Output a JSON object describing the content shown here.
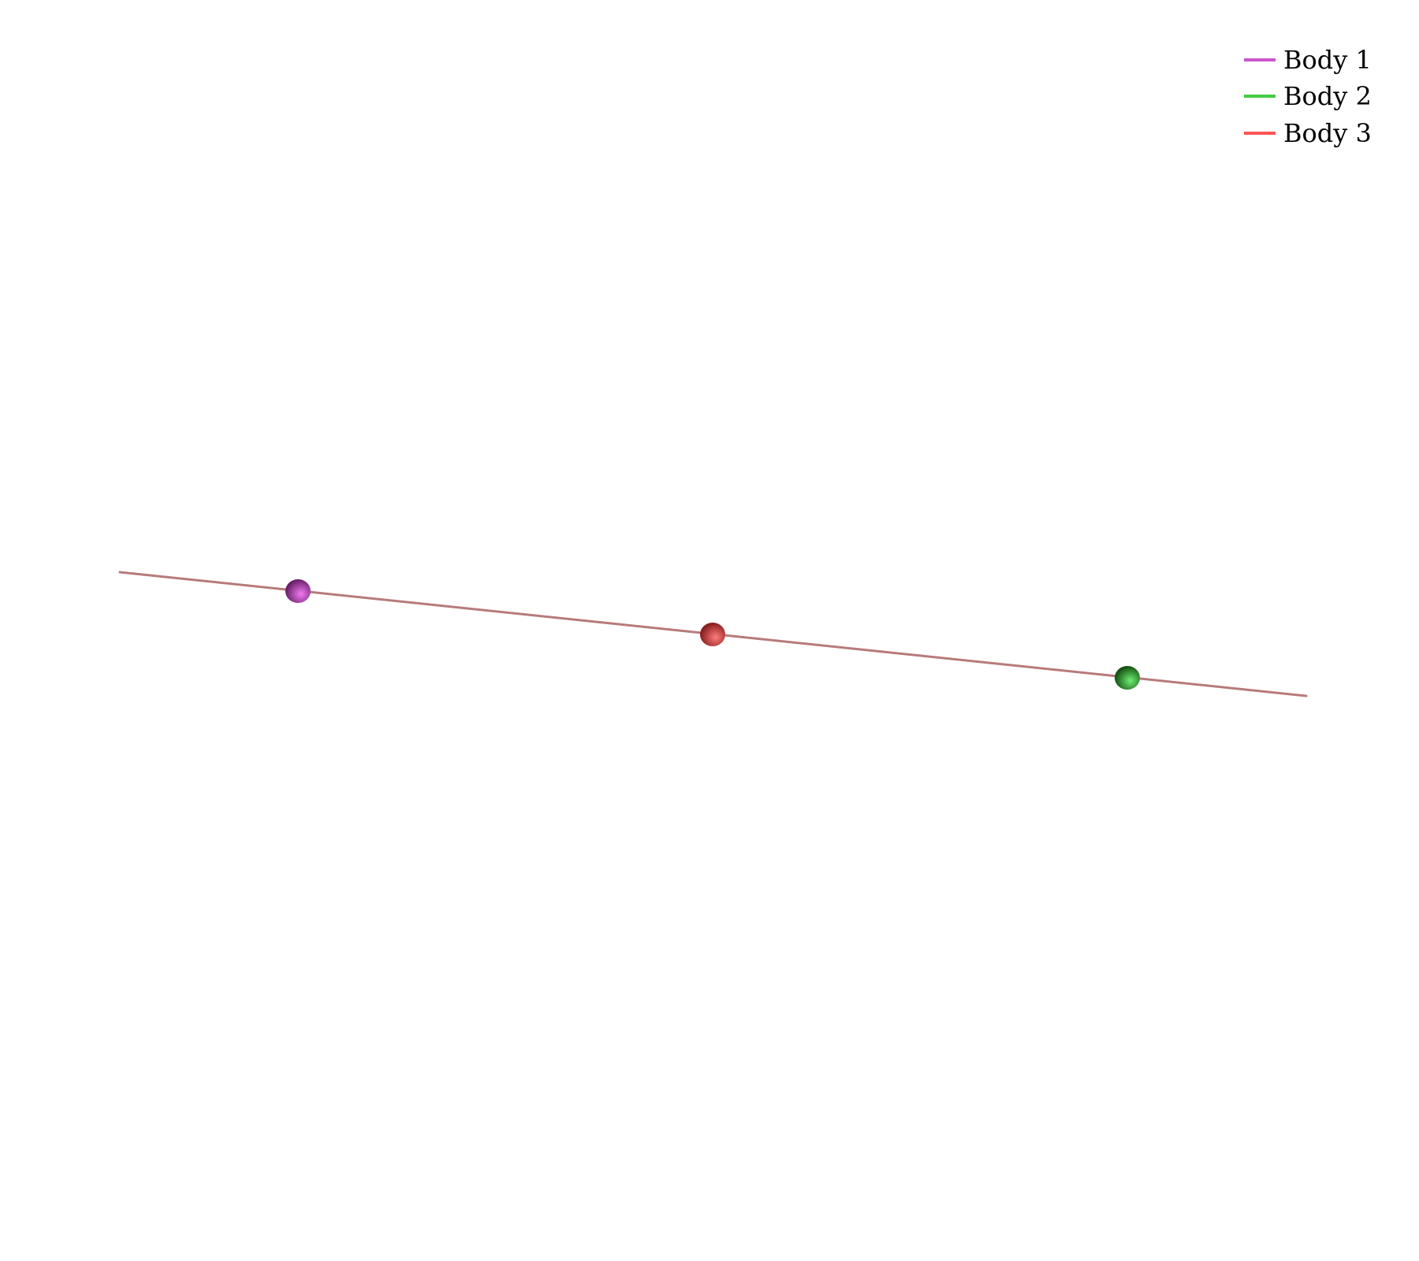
{
  "diagram": {
    "trajectory_color": "#b87a7a",
    "bodies": [
      {
        "name": "Body 1",
        "color": "#cc55cc",
        "sphere_light": "#f27af2",
        "sphere_dark": "#6a1f6a"
      },
      {
        "name": "Body 2",
        "color": "#44cc44",
        "sphere_light": "#6fef6f",
        "sphere_dark": "#145214"
      },
      {
        "name": "Body 3",
        "color": "#ff5555",
        "sphere_light": "#ff7a7a",
        "sphere_dark": "#8a1e1e"
      }
    ]
  },
  "legend": {
    "position": "top-right",
    "items": [
      {
        "label": "Body 1",
        "color": "#cc55cc"
      },
      {
        "label": "Body 2",
        "color": "#44cc44"
      },
      {
        "label": "Body 3",
        "color": "#ff5555"
      }
    ]
  }
}
